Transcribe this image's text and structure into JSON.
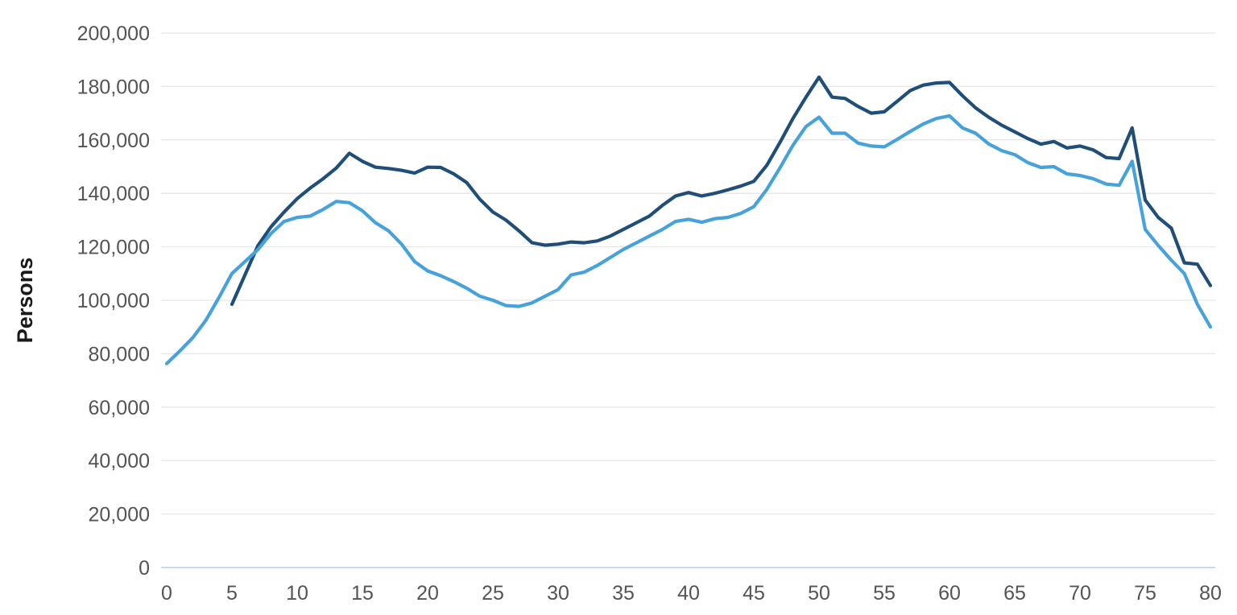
{
  "chart_data": {
    "type": "line",
    "title": "",
    "ylabel": "Persons",
    "xlabel": "",
    "xlim": [
      0,
      80
    ],
    "ylim": [
      0,
      200000
    ],
    "grid": true,
    "legend_position": "none",
    "x_ticks": [
      0,
      5,
      10,
      15,
      20,
      25,
      30,
      35,
      40,
      45,
      50,
      55,
      60,
      65,
      70,
      75,
      80
    ],
    "x_tick_labels": [
      "0",
      "5",
      "10",
      "15",
      "20",
      "25",
      "30",
      "35",
      "40",
      "45",
      "50",
      "55",
      "60",
      "65",
      "70",
      "75",
      "80"
    ],
    "y_ticks": [
      0,
      20000,
      40000,
      60000,
      80000,
      100000,
      120000,
      140000,
      160000,
      180000,
      200000
    ],
    "y_tick_labels": [
      "0",
      "20,000",
      "40,000",
      "60,000",
      "80,000",
      "100,000",
      "120,000",
      "140,000",
      "160,000",
      "180,000",
      "200,000"
    ],
    "x": [
      0,
      1,
      2,
      3,
      4,
      5,
      6,
      7,
      8,
      9,
      10,
      11,
      12,
      13,
      14,
      15,
      16,
      17,
      18,
      19,
      20,
      21,
      22,
      23,
      24,
      25,
      26,
      27,
      28,
      29,
      30,
      31,
      32,
      33,
      34,
      35,
      36,
      37,
      38,
      39,
      40,
      41,
      42,
      43,
      44,
      45,
      46,
      47,
      48,
      49,
      50,
      51,
      52,
      53,
      54,
      55,
      56,
      57,
      58,
      59,
      60,
      61,
      62,
      63,
      64,
      65,
      66,
      67,
      68,
      69,
      70,
      71,
      72,
      73,
      74,
      75,
      76,
      77,
      78,
      79,
      80
    ],
    "series": [
      {
        "name": "dark_blue_line",
        "color": "#1F4E79",
        "values": [
          null,
          null,
          null,
          null,
          null,
          98500,
          109500,
          120500,
          127500,
          133000,
          138000,
          142000,
          145500,
          149500,
          155000,
          152000,
          149800,
          149300,
          148600,
          147600,
          149800,
          149700,
          147300,
          144000,
          137800,
          133000,
          130000,
          126000,
          121500,
          120600,
          121000,
          121800,
          121500,
          122200,
          124000,
          126500,
          129000,
          131500,
          135500,
          139000,
          140300,
          139000,
          140000,
          141300,
          142700,
          144500,
          150500,
          159000,
          168000,
          176000,
          183500,
          176000,
          175500,
          172500,
          170000,
          170500,
          174500,
          178500,
          180500,
          181300,
          181500,
          176500,
          172000,
          168500,
          165500,
          163000,
          160500,
          158400,
          159400,
          157000,
          157700,
          156300,
          153400,
          153000,
          164500,
          137500,
          131000,
          127000,
          114000,
          113500,
          105500
        ]
      },
      {
        "name": "light_blue_line",
        "color": "#46A2DA",
        "values": [
          76300,
          81000,
          86000,
          92500,
          101000,
          110000,
          114500,
          119000,
          125000,
          129500,
          131000,
          131500,
          134000,
          137000,
          136500,
          133500,
          129000,
          126000,
          121000,
          114500,
          111000,
          109200,
          107000,
          104500,
          101500,
          100000,
          98000,
          97700,
          99000,
          101500,
          104000,
          109500,
          110500,
          113000,
          116000,
          119000,
          121500,
          124000,
          126500,
          129500,
          130300,
          129200,
          130500,
          131000,
          132500,
          135000,
          141500,
          149500,
          158000,
          165000,
          168500,
          162500,
          162500,
          158800,
          157700,
          157400,
          160200,
          163200,
          166000,
          168000,
          169000,
          164500,
          162500,
          158500,
          156000,
          154500,
          151500,
          149700,
          150000,
          147300,
          146700,
          145500,
          143500,
          143000,
          152000,
          126500,
          120500,
          115000,
          110000,
          98500,
          90000
        ]
      }
    ]
  },
  "style": {
    "background": "#FFFFFF",
    "gridline_color": "#E7E7E7",
    "baseline_color": "#C9D9EC",
    "tick_label_color": "#545454",
    "axis_label_color": "#1A1A1A"
  }
}
